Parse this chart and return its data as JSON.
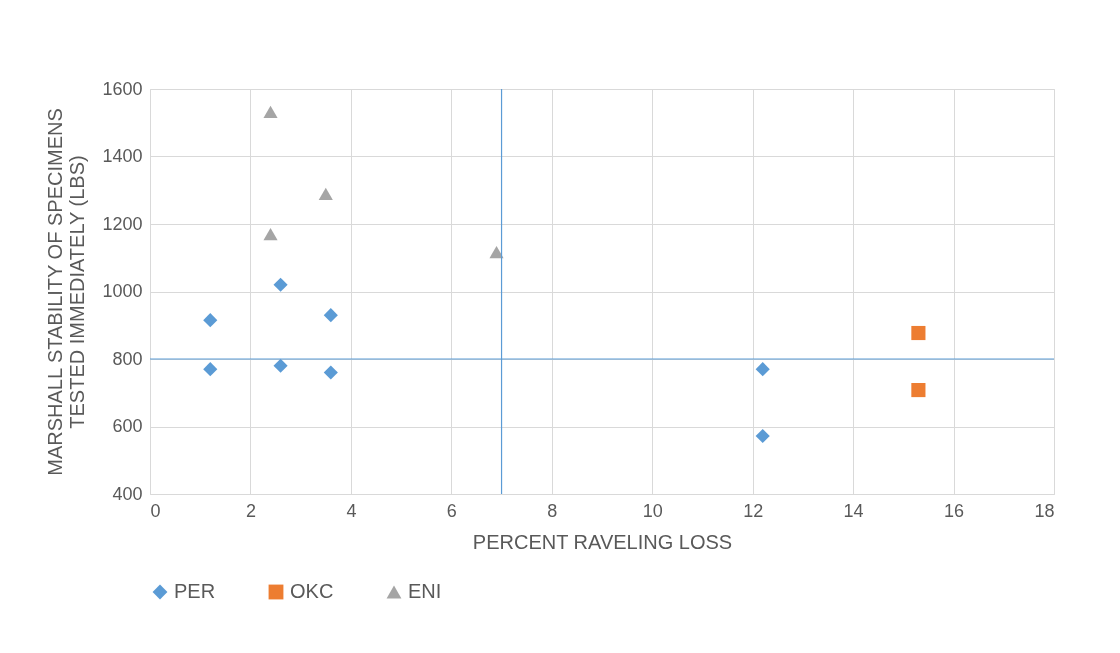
{
  "chart_data": {
    "type": "scatter",
    "xlabel": "PERCENT RAVELING LOSS",
    "ylabel": "MARSHALL STABILITY OF SPECIMENS TESTED IMMEDIATELY (LBS)",
    "xlim": [
      0,
      18
    ],
    "xticks": [
      0,
      2,
      4,
      6,
      8,
      10,
      12,
      14,
      16,
      18
    ],
    "ylim": [
      400,
      1600
    ],
    "yticks": [
      400,
      600,
      800,
      1000,
      1200,
      1400,
      1600
    ],
    "grid": true,
    "legend": "bottom",
    "series": [
      {
        "name": "PER",
        "color": "#5b9bd5",
        "marker": "diamond",
        "x": [
          1.2,
          1.2,
          2.6,
          2.6,
          3.6,
          3.6,
          12.2,
          12.2
        ],
        "values": [
          915,
          770,
          1020,
          780,
          930,
          760,
          770,
          572
        ]
      },
      {
        "name": "OKC",
        "color": "#ed7d31",
        "marker": "square",
        "x": [
          15.3,
          15.3
        ],
        "values": [
          877,
          708
        ]
      },
      {
        "name": "ENI",
        "color": "#a5a5a5",
        "marker": "triangle",
        "x": [
          2.4,
          2.4,
          3.5,
          6.9
        ],
        "values": [
          1532,
          1170,
          1289,
          1117
        ]
      }
    ],
    "ref_lines": [
      {
        "axis": "x",
        "value": 7,
        "color": "#5b9bd5"
      },
      {
        "axis": "y",
        "value": 800,
        "color": "#5b9bd5"
      }
    ]
  }
}
